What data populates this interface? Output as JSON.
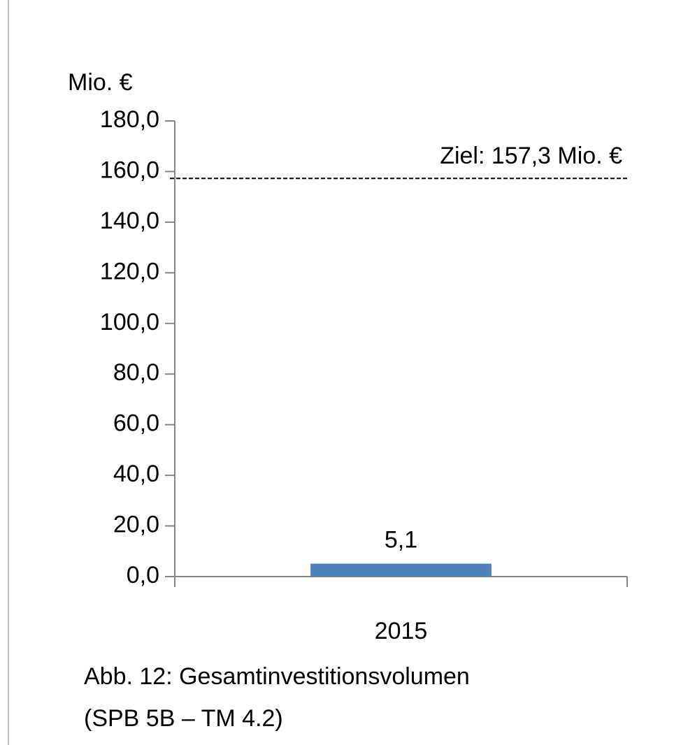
{
  "chart_data": {
    "type": "bar",
    "y_axis_label": "Mio. €",
    "categories": [
      "2015"
    ],
    "values": [
      5.1
    ],
    "value_labels": [
      "5,1"
    ],
    "color": "#4f81bd",
    "ylim": [
      0,
      180
    ],
    "yticks": [
      {
        "value": 0,
        "label": "0,0"
      },
      {
        "value": 20,
        "label": "20,0"
      },
      {
        "value": 40,
        "label": "40,0"
      },
      {
        "value": 60,
        "label": "60,0"
      },
      {
        "value": 80,
        "label": "80,0"
      },
      {
        "value": 100,
        "label": "100,0"
      },
      {
        "value": 120,
        "label": "120,0"
      },
      {
        "value": 140,
        "label": "140,0"
      },
      {
        "value": 160,
        "label": "160,0"
      },
      {
        "value": 180,
        "label": "180,0"
      }
    ],
    "target": {
      "value": 157.3,
      "label": "Ziel: 157,3 Mio. €"
    },
    "caption": [
      "Abb. 12: Gesamtinvestitionsvolumen",
      "(SPB 5B – TM 4.2)"
    ]
  }
}
